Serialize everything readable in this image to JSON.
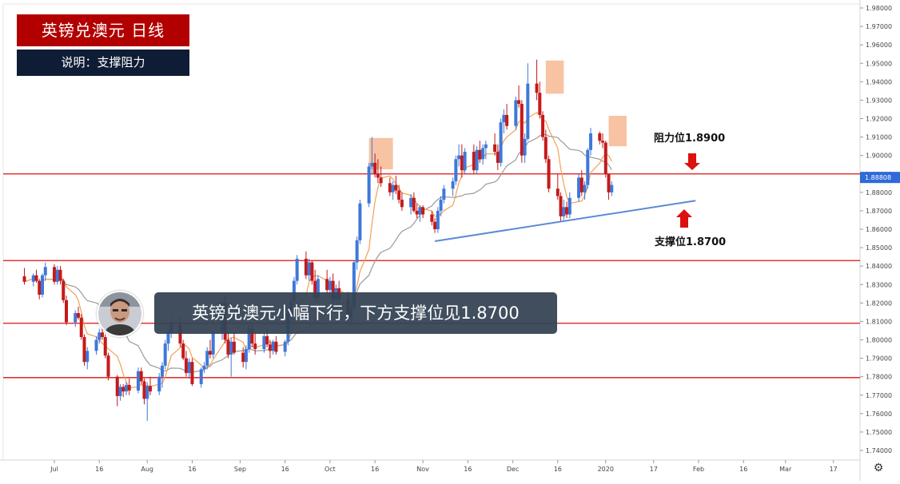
{
  "header": {
    "title": "英镑兑澳元  日线",
    "subtitle": "说明：支撑阻力"
  },
  "caption": "英镑兑澳元小幅下行，下方支撑位见1.8700",
  "chart_data": {
    "type": "candlestick",
    "instrument": "GBPAUD",
    "timeframe": "daily",
    "ylim": [
      1.735,
      1.982
    ],
    "y_ticks": [
      "1.98000",
      "1.97000",
      "1.96000",
      "1.95000",
      "1.94000",
      "1.93000",
      "1.92000",
      "1.91000",
      "1.90000",
      "1.89000",
      "1.88000",
      "1.87000",
      "1.86000",
      "1.85000",
      "1.84000",
      "1.83000",
      "1.82000",
      "1.81000",
      "1.80000",
      "1.79000",
      "1.78000",
      "1.77000",
      "1.76000",
      "1.75000",
      "1.74000"
    ],
    "x_ticks": [
      "Jul",
      "16",
      "Aug",
      "16",
      "Sep",
      "16",
      "Oct",
      "16",
      "Nov",
      "16",
      "Dec",
      "16",
      "2020",
      "17",
      "Feb",
      "16",
      "Mar",
      "17"
    ],
    "last_price": "1.88808",
    "horizontal_levels": [
      1.89,
      1.843,
      1.809,
      1.7795
    ],
    "resistance": {
      "label": "阻力位1.8900",
      "value": 1.89
    },
    "support": {
      "label": "支撑位1.8700",
      "value": 1.87
    },
    "trendline": {
      "from": [
        "2019-11-05",
        1.8535
      ],
      "to": [
        "2020-01-31",
        1.8755
      ]
    },
    "highlights": [
      {
        "from": "2019-10-14",
        "to": "2019-10-22",
        "low": 1.8925,
        "high": 1.9095
      },
      {
        "from": "2019-12-12",
        "to": "2019-12-18",
        "low": 1.9335,
        "high": 1.9515
      },
      {
        "from": "2020-01-02",
        "to": "2020-01-08",
        "low": 1.905,
        "high": 1.9215
      }
    ],
    "colors": {
      "up": "#3f78d8",
      "down": "#c41a1a",
      "level": "#dd1010",
      "ma_fast": "#f2a154",
      "ma_slow": "#9a9a9a",
      "trendline": "#5b8ad8",
      "highlight": "#f5b48c"
    },
    "ohlc": [
      [
        1.8345,
        1.839,
        1.83,
        1.8315
      ],
      [
        1.8315,
        1.836,
        1.829,
        1.835
      ],
      [
        1.835,
        1.838,
        1.831,
        1.832
      ],
      [
        1.832,
        1.833,
        1.822,
        1.8245
      ],
      [
        1.8245,
        1.836,
        1.823,
        1.835
      ],
      [
        1.835,
        1.842,
        1.832,
        1.8395
      ],
      [
        1.8395,
        1.841,
        1.83,
        1.8315
      ],
      [
        1.8315,
        1.84,
        1.83,
        1.838
      ],
      [
        1.838,
        1.84,
        1.83,
        1.832
      ],
      [
        1.832,
        1.833,
        1.82,
        1.8215
      ],
      [
        1.8215,
        1.824,
        1.808,
        1.8095
      ],
      [
        1.8095,
        1.816,
        1.807,
        1.8145
      ],
      [
        1.8145,
        1.818,
        1.811,
        1.812
      ],
      [
        1.812,
        1.814,
        1.8,
        1.8015
      ],
      [
        1.8015,
        1.803,
        1.786,
        1.788
      ],
      [
        1.788,
        1.796,
        1.784,
        1.794
      ],
      [
        1.794,
        1.802,
        1.792,
        1.8
      ],
      [
        1.8,
        1.806,
        1.798,
        1.804
      ],
      [
        1.804,
        1.809,
        1.8,
        1.8015
      ],
      [
        1.8015,
        1.803,
        1.79,
        1.7915
      ],
      [
        1.7915,
        1.793,
        1.778,
        1.78
      ],
      [
        1.78,
        1.781,
        1.764,
        1.7695
      ],
      [
        1.7695,
        1.776,
        1.767,
        1.7745
      ],
      [
        1.7745,
        1.776,
        1.769,
        1.772
      ],
      [
        1.772,
        1.777,
        1.77,
        1.7755
      ],
      [
        1.7755,
        1.779,
        1.77,
        1.7725
      ],
      [
        1.7725,
        1.785,
        1.771,
        1.783
      ],
      [
        1.783,
        1.785,
        1.776,
        1.7775
      ],
      [
        1.7775,
        1.779,
        1.765,
        1.768
      ],
      [
        1.768,
        1.777,
        1.756,
        1.775
      ],
      [
        1.775,
        1.78,
        1.77,
        1.772
      ],
      [
        1.772,
        1.782,
        1.77,
        1.78
      ],
      [
        1.78,
        1.788,
        1.774,
        1.786
      ],
      [
        1.786,
        1.8,
        1.784,
        1.798
      ],
      [
        1.798,
        1.806,
        1.794,
        1.804
      ],
      [
        1.804,
        1.812,
        1.801,
        1.8085
      ],
      [
        1.8085,
        1.812,
        1.796,
        1.798
      ],
      [
        1.798,
        1.8,
        1.789,
        1.79
      ],
      [
        1.79,
        1.794,
        1.78,
        1.782
      ],
      [
        1.782,
        1.79,
        1.779,
        1.788
      ],
      [
        1.788,
        1.79,
        1.775,
        1.776
      ],
      [
        1.776,
        1.785,
        1.774,
        1.784
      ],
      [
        1.784,
        1.788,
        1.782,
        1.786
      ],
      [
        1.786,
        1.796,
        1.784,
        1.794
      ],
      [
        1.794,
        1.8,
        1.79,
        1.792
      ],
      [
        1.792,
        1.805,
        1.79,
        1.804
      ],
      [
        1.804,
        1.822,
        1.8,
        1.82
      ],
      [
        1.82,
        1.824,
        1.798,
        1.8
      ],
      [
        1.8,
        1.804,
        1.79,
        1.792
      ],
      [
        1.792,
        1.801,
        1.78,
        1.799
      ],
      [
        1.799,
        1.804,
        1.792,
        1.793
      ],
      [
        1.793,
        1.796,
        1.785,
        1.788
      ],
      [
        1.788,
        1.797,
        1.784,
        1.795
      ],
      [
        1.795,
        1.808,
        1.793,
        1.806
      ],
      [
        1.806,
        1.809,
        1.796,
        1.798
      ],
      [
        1.798,
        1.804,
        1.792,
        1.795
      ],
      [
        1.795,
        1.804,
        1.793,
        1.802
      ],
      [
        1.802,
        1.806,
        1.796,
        1.7975
      ],
      [
        1.7975,
        1.8,
        1.79,
        1.794
      ],
      [
        1.794,
        1.8,
        1.792,
        1.799
      ],
      [
        1.799,
        1.802,
        1.792,
        1.7935
      ],
      [
        1.7935,
        1.8,
        1.791,
        1.799
      ],
      [
        1.799,
        1.816,
        1.797,
        1.814
      ],
      [
        1.814,
        1.824,
        1.81,
        1.821
      ],
      [
        1.821,
        1.834,
        1.819,
        1.832
      ],
      [
        1.832,
        1.846,
        1.83,
        1.844
      ],
      [
        1.844,
        1.848,
        1.833,
        1.835
      ],
      [
        1.835,
        1.844,
        1.832,
        1.842
      ],
      [
        1.842,
        1.843,
        1.83,
        1.832
      ],
      [
        1.832,
        1.838,
        1.821,
        1.823
      ],
      [
        1.823,
        1.835,
        1.82,
        1.833
      ],
      [
        1.833,
        1.838,
        1.825,
        1.827
      ],
      [
        1.827,
        1.834,
        1.823,
        1.832
      ],
      [
        1.832,
        1.836,
        1.82,
        1.822
      ],
      [
        1.822,
        1.83,
        1.818,
        1.828
      ],
      [
        1.828,
        1.832,
        1.82,
        1.822
      ],
      [
        1.822,
        1.826,
        1.81,
        1.812
      ],
      [
        1.812,
        1.82,
        1.808,
        1.818
      ],
      [
        1.818,
        1.843,
        1.816,
        1.842
      ],
      [
        1.842,
        1.856,
        1.838,
        1.854
      ],
      [
        1.854,
        1.876,
        1.852,
        1.874
      ],
      [
        1.874,
        1.896,
        1.872,
        1.894
      ],
      [
        1.894,
        1.91,
        1.89,
        1.896
      ],
      [
        1.896,
        1.901,
        1.888,
        1.89
      ],
      [
        1.89,
        1.898,
        1.885,
        1.888
      ],
      [
        1.888,
        1.894,
        1.883,
        1.885
      ],
      [
        1.885,
        1.888,
        1.878,
        1.88
      ],
      [
        1.88,
        1.886,
        1.876,
        1.884
      ],
      [
        1.884,
        1.889,
        1.879,
        1.881
      ],
      [
        1.881,
        1.884,
        1.874,
        1.876
      ],
      [
        1.876,
        1.88,
        1.87,
        1.872
      ],
      [
        1.872,
        1.879,
        1.868,
        1.877
      ],
      [
        1.877,
        1.88,
        1.869,
        1.87
      ],
      [
        1.87,
        1.874,
        1.866,
        1.868
      ],
      [
        1.868,
        1.873,
        1.864,
        1.872
      ],
      [
        1.872,
        1.873,
        1.866,
        1.868
      ],
      [
        1.868,
        1.87,
        1.862,
        1.864
      ],
      [
        1.864,
        1.866,
        1.858,
        1.86
      ],
      [
        1.86,
        1.872,
        1.858,
        1.87
      ],
      [
        1.87,
        1.878,
        1.867,
        1.876
      ],
      [
        1.876,
        1.884,
        1.874,
        1.882
      ],
      [
        1.882,
        1.888,
        1.878,
        1.886
      ],
      [
        1.886,
        1.9,
        1.884,
        1.898
      ],
      [
        1.898,
        1.906,
        1.894,
        1.9
      ],
      [
        1.9,
        1.906,
        1.888,
        1.892
      ],
      [
        1.892,
        1.904,
        1.89,
        1.902
      ],
      [
        1.902,
        1.906,
        1.89,
        1.892
      ],
      [
        1.892,
        1.905,
        1.89,
        1.903
      ],
      [
        1.903,
        1.908,
        1.896,
        1.898
      ],
      [
        1.898,
        1.906,
        1.895,
        1.904
      ],
      [
        1.904,
        1.908,
        1.898,
        1.906
      ],
      [
        1.906,
        1.912,
        1.9,
        1.902
      ],
      [
        1.902,
        1.906,
        1.892,
        1.896
      ],
      [
        1.896,
        1.92,
        1.894,
        1.918
      ],
      [
        1.918,
        1.925,
        1.912,
        1.922
      ],
      [
        1.922,
        1.928,
        1.914,
        1.916
      ],
      [
        1.916,
        1.932,
        1.914,
        1.93
      ],
      [
        1.93,
        1.938,
        1.926,
        1.928
      ],
      [
        1.928,
        1.93,
        1.896,
        1.9
      ],
      [
        1.9,
        1.912,
        1.896,
        1.909
      ],
      [
        1.909,
        1.95,
        1.908,
        1.939
      ],
      [
        1.939,
        1.952,
        1.93,
        1.934
      ],
      [
        1.934,
        1.94,
        1.92,
        1.922
      ],
      [
        1.922,
        1.924,
        1.908,
        1.91
      ],
      [
        1.91,
        1.914,
        1.896,
        1.898
      ],
      [
        1.898,
        1.9,
        1.88,
        1.882
      ],
      [
        1.882,
        1.89,
        1.876,
        1.878
      ],
      [
        1.878,
        1.88,
        1.864,
        1.867
      ],
      [
        1.867,
        1.876,
        1.865,
        1.872
      ],
      [
        1.872,
        1.875,
        1.866,
        1.868
      ],
      [
        1.868,
        1.88,
        1.866,
        1.877
      ],
      [
        1.877,
        1.89,
        1.875,
        1.888
      ],
      [
        1.888,
        1.892,
        1.878,
        1.88
      ],
      [
        1.88,
        1.886,
        1.876,
        1.884
      ],
      [
        1.884,
        1.904,
        1.882,
        1.903
      ],
      [
        1.903,
        1.915,
        1.9,
        1.912
      ],
      [
        1.912,
        1.913,
        1.906,
        1.908
      ],
      [
        1.908,
        1.912,
        1.904,
        1.907
      ],
      [
        1.907,
        1.908,
        1.888,
        1.89
      ],
      [
        1.89,
        1.89,
        1.876,
        1.88
      ],
      [
        1.88,
        1.886,
        1.878,
        1.884
      ]
    ]
  }
}
